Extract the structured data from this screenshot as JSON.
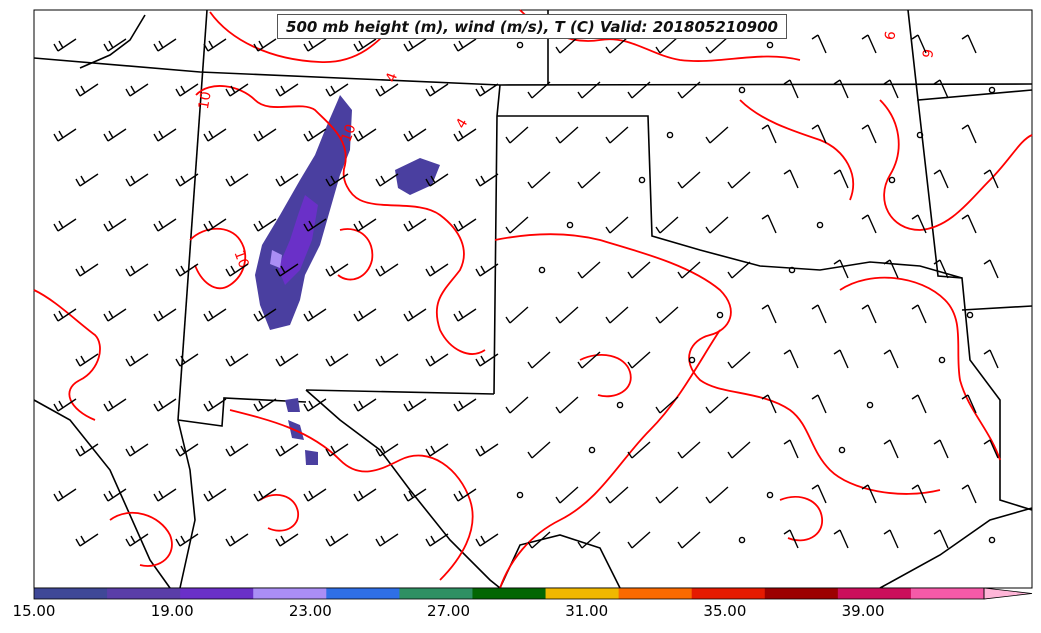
{
  "map": {
    "title": "500 mb height (m), wind (m/s), T (C) Valid: 201805210900",
    "contour_color": "#ff0000",
    "border_color": "#000000",
    "contour_labels": [
      {
        "text": "10"
      },
      {
        "text": "10"
      },
      {
        "text": "4"
      },
      {
        "text": "4"
      },
      {
        "text": "6"
      },
      {
        "text": "9"
      },
      {
        "text": "10"
      }
    ]
  },
  "colorbar": {
    "tick_labels": [
      "15.00",
      "19.00",
      "23.00",
      "27.00",
      "31.00",
      "35.00",
      "39.00"
    ],
    "tick_values": [
      15,
      19,
      23,
      27,
      31,
      35,
      39
    ],
    "range": [
      15,
      42.5
    ],
    "colors": [
      "#3f4897",
      "#5a3ea8",
      "#6a30c8",
      "#aa8ef5",
      "#2f6fe6",
      "#2e9063",
      "#036603",
      "#f0b800",
      "#fa6a00",
      "#e51a00",
      "#9c0000",
      "#cb0e5b",
      "#f55aa8"
    ],
    "extend_color": "#ffb6d8"
  }
}
